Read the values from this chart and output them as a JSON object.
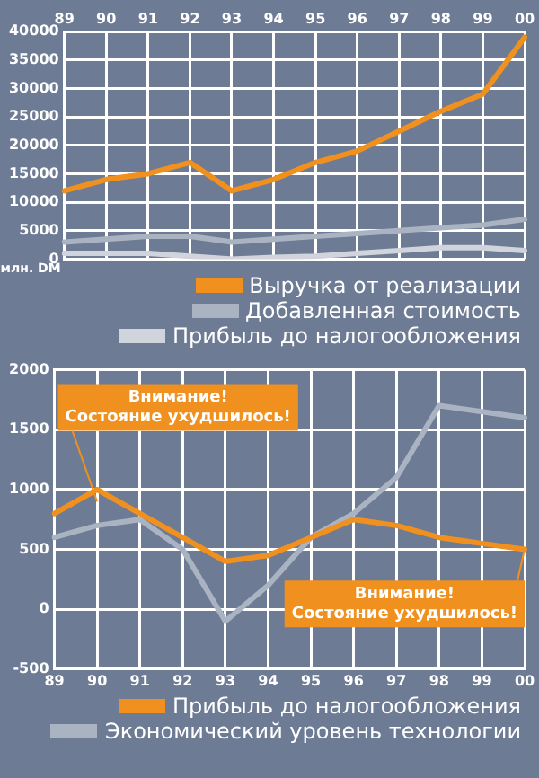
{
  "chart_data": [
    {
      "type": "line",
      "ylabel": "млн. DM",
      "categories": [
        "89",
        "90",
        "91",
        "92",
        "93",
        "94",
        "95",
        "96",
        "97",
        "98",
        "99",
        "00"
      ],
      "series": [
        {
          "name": "Выручка от реализации",
          "color": "#f0901e",
          "values": [
            12000,
            14000,
            15000,
            17000,
            12000,
            14000,
            17000,
            19000,
            22500,
            26000,
            29000,
            39000
          ]
        },
        {
          "name": "Добавленная стоимость",
          "color": "#aab3c2",
          "values": [
            3000,
            3500,
            4000,
            4000,
            3000,
            3500,
            4000,
            4500,
            5000,
            5500,
            6000,
            7000
          ]
        },
        {
          "name": "Прибыль до налогообложения",
          "color": "#cfd4dd",
          "values": [
            1000,
            1000,
            1000,
            500,
            0,
            300,
            500,
            1000,
            1500,
            2000,
            2000,
            1500
          ]
        }
      ],
      "ylim": [
        0,
        40000
      ],
      "yticks": [
        0,
        5000,
        10000,
        15000,
        20000,
        25000,
        30000,
        35000,
        40000
      ],
      "grid": true,
      "legend": "bottom",
      "marker": "none",
      "line_style": "solid"
    },
    {
      "type": "line",
      "categories": [
        "89",
        "90",
        "91",
        "92",
        "93",
        "94",
        "95",
        "96",
        "97",
        "98",
        "99",
        "00"
      ],
      "series": [
        {
          "name": "Прибыль до налогообложения",
          "color": "#f0901e",
          "values": [
            800,
            1000,
            800,
            600,
            400,
            450,
            600,
            750,
            700,
            600,
            550,
            500
          ]
        },
        {
          "name": "Экономический уровень технологии",
          "color": "#aab3c2",
          "values": [
            600,
            700,
            750,
            500,
            -100,
            200,
            600,
            800,
            1100,
            1700,
            1650,
            1600
          ]
        }
      ],
      "annotations": [
        {
          "text": "Внимание!\nСостояние ухудшилось!",
          "x": "90",
          "y": 900
        },
        {
          "text": "Внимание!\nСостояние ухудшилось!",
          "x": "00",
          "y": 500
        }
      ],
      "ylim": [
        -500,
        2000
      ],
      "yticks": [
        -500,
        0,
        500,
        1000,
        1500,
        2000
      ],
      "grid": true,
      "legend": "bottom",
      "marker": "none",
      "line_style": "solid"
    }
  ]
}
